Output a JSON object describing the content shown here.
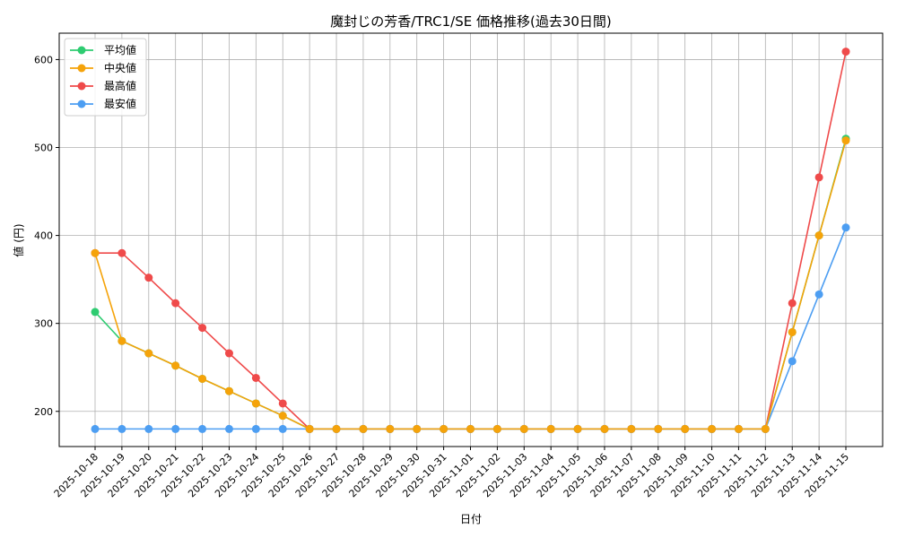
{
  "chart_data": {
    "type": "line",
    "title": "魔封じの芳香/TRC1/SE 価格推移(過去30日間)",
    "xlabel": "日付",
    "ylabel": "値 (円)",
    "x": [
      "2025-10-18",
      "2025-10-19",
      "2025-10-20",
      "2025-10-21",
      "2025-10-22",
      "2025-10-23",
      "2025-10-24",
      "2025-10-25",
      "2025-10-26",
      "2025-10-27",
      "2025-10-28",
      "2025-10-29",
      "2025-10-30",
      "2025-10-31",
      "2025-11-01",
      "2025-11-02",
      "2025-11-03",
      "2025-11-04",
      "2025-11-05",
      "2025-11-06",
      "2025-11-07",
      "2025-11-08",
      "2025-11-09",
      "2025-11-10",
      "2025-11-11",
      "2025-11-12",
      "2025-11-13",
      "2025-11-14",
      "2025-11-15"
    ],
    "ylim": [
      160,
      630
    ],
    "yticks": [
      200,
      300,
      400,
      500,
      600
    ],
    "grid": true,
    "legend_position": "top-left",
    "series": [
      {
        "name": "平均値",
        "color": "#2ecc71",
        "values": [
          313,
          280,
          266,
          252,
          237,
          223,
          209,
          195,
          180,
          180,
          180,
          180,
          180,
          180,
          180,
          180,
          180,
          180,
          180,
          180,
          180,
          180,
          180,
          180,
          180,
          180,
          290,
          400,
          510
        ]
      },
      {
        "name": "中央値",
        "color": "#f5a30a",
        "values": [
          380,
          280,
          266,
          252,
          237,
          223,
          209,
          195,
          180,
          180,
          180,
          180,
          180,
          180,
          180,
          180,
          180,
          180,
          180,
          180,
          180,
          180,
          180,
          180,
          180,
          180,
          290,
          400,
          508
        ]
      },
      {
        "name": "最高値",
        "color": "#ef4a4a",
        "values": [
          380,
          380,
          352,
          323,
          295,
          266,
          238,
          209,
          180,
          180,
          180,
          180,
          180,
          180,
          180,
          180,
          180,
          180,
          180,
          180,
          180,
          180,
          180,
          180,
          180,
          180,
          323,
          466,
          609
        ]
      },
      {
        "name": "最安値",
        "color": "#4d9ef2",
        "values": [
          180,
          180,
          180,
          180,
          180,
          180,
          180,
          180,
          180,
          180,
          180,
          180,
          180,
          180,
          180,
          180,
          180,
          180,
          180,
          180,
          180,
          180,
          180,
          180,
          180,
          180,
          257,
          333,
          409
        ]
      }
    ]
  }
}
